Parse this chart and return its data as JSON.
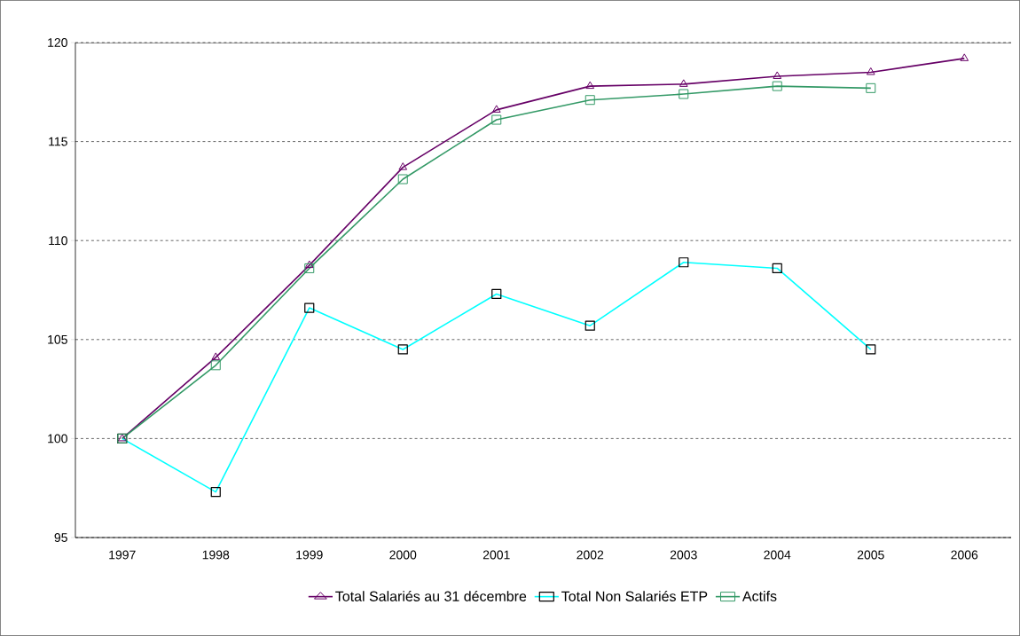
{
  "chart_data": {
    "type": "line",
    "categories": [
      "1997",
      "1998",
      "1999",
      "2000",
      "2001",
      "2002",
      "2003",
      "2004",
      "2005",
      "2006"
    ],
    "series": [
      {
        "name": "Total Salariés au 31 décembre",
        "color": "#660066",
        "marker": "triangle",
        "values": [
          100,
          104.1,
          108.75,
          113.7,
          116.6,
          117.8,
          117.9,
          118.3,
          118.5,
          119.2
        ]
      },
      {
        "name": "Total Non Salariés ETP",
        "color": "#00ffff",
        "marker": "square",
        "values": [
          100,
          97.3,
          106.6,
          104.5,
          107.3,
          105.7,
          108.9,
          108.6,
          104.5,
          null
        ]
      },
      {
        "name": "Actifs",
        "color": "#339966",
        "marker": "square",
        "values": [
          100,
          103.7,
          108.6,
          113.1,
          116.1,
          117.1,
          117.4,
          117.8,
          117.7,
          null
        ]
      }
    ],
    "ylim": [
      95,
      120
    ],
    "yticks": [
      95,
      100,
      105,
      110,
      115,
      120
    ],
    "grid": "y",
    "legend": "bottom",
    "line_style": "solid"
  }
}
